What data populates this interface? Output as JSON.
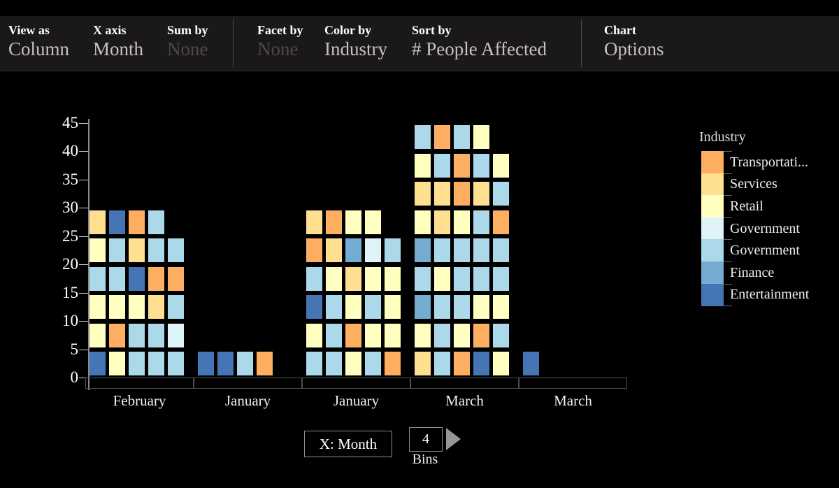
{
  "toolbar": {
    "groups": [
      {
        "label": "View as",
        "value": "Column",
        "muted": false
      },
      {
        "label": "X axis",
        "value": "Month",
        "muted": false
      },
      {
        "label": "Sum by",
        "value": "None",
        "muted": true
      },
      {
        "label": "Facet by",
        "value": "None",
        "muted": true
      },
      {
        "label": "Color by",
        "value": "Industry",
        "muted": false
      },
      {
        "label": "Sort by",
        "value": "# People Affected",
        "muted": false
      },
      {
        "label": "Chart",
        "value": "Options",
        "muted": false
      }
    ]
  },
  "legend": {
    "title": "Industry",
    "items": [
      {
        "label": "Transportati...",
        "color": "#fdae61"
      },
      {
        "label": "Services",
        "color": "#fee090"
      },
      {
        "label": "Retail",
        "color": "#ffffbf"
      },
      {
        "label": "Government",
        "color": "#e0f3f8"
      },
      {
        "label": "Government",
        "color": "#abd9e9"
      },
      {
        "label": "Finance",
        "color": "#74add1"
      },
      {
        "label": "Entertainment",
        "color": "#4575b4"
      }
    ]
  },
  "chart_data": {
    "type": "unit-column",
    "x_field": "Month",
    "color_field": "Industry",
    "sort_field": "# People Affected",
    "categories": [
      "February",
      "January",
      "January",
      "March",
      "March"
    ],
    "totals": [
      29,
      4,
      29,
      44,
      1
    ],
    "y_ticks": [
      0,
      5,
      10,
      15,
      20,
      25,
      30,
      35,
      40,
      45
    ],
    "ylim": [
      0,
      45
    ],
    "units_per_row": 5,
    "unit_value": 1,
    "legend_position": "right",
    "palette": {
      "T": "#fdae61",
      "S": "#fee090",
      "R": "#ffffbf",
      "G1": "#e0f3f8",
      "G2": "#abd9e9",
      "F": "#74add1",
      "E": "#4575b4"
    },
    "palette_names": {
      "T": "Transportation",
      "S": "Services",
      "R": "Retail",
      "G1": "Government",
      "G2": "Government",
      "F": "Finance",
      "E": "Entertainment"
    },
    "columns": [
      {
        "month": "February",
        "cells": [
          "E",
          "R",
          "G2",
          "G2",
          "G2",
          "R",
          "T",
          "G2",
          "G2",
          "G1",
          "R",
          "R",
          "R",
          "S",
          "G2",
          "G2",
          "G2",
          "E",
          "T",
          "T",
          "R",
          "G2",
          "S",
          "G2",
          "G2",
          "S",
          "E",
          "T",
          "G2"
        ]
      },
      {
        "month": "January",
        "cells": [
          "E",
          "E",
          "G2",
          "T"
        ]
      },
      {
        "month": "January",
        "cells": [
          "G2",
          "G2",
          "R",
          "G2",
          "T",
          "R",
          "G2",
          "T",
          "R",
          "R",
          "E",
          "G2",
          "R",
          "G2",
          "R",
          "G2",
          "R",
          "S",
          "R",
          "R",
          "T",
          "S",
          "F",
          "G1",
          "G2",
          "S",
          "T",
          "R",
          "R"
        ]
      },
      {
        "month": "March",
        "cells": [
          "S",
          "G2",
          "T",
          "E",
          "R",
          "R",
          "G2",
          "R",
          "T",
          "G2",
          "F",
          "G2",
          "G2",
          "R",
          "R",
          "G2",
          "R",
          "G2",
          "G2",
          "G2",
          "F",
          "G2",
          "G2",
          "G2",
          "G2",
          "R",
          "S",
          "R",
          "G2",
          "T",
          "S",
          "S",
          "T",
          "S",
          "G2",
          "R",
          "G2",
          "T",
          "G2",
          "R",
          "G2",
          "T",
          "G2",
          "R"
        ]
      },
      {
        "month": "March",
        "cells": [
          "E"
        ]
      }
    ]
  },
  "controls": {
    "x_button": "X: Month",
    "bins_value": "4",
    "bins_label": "Bins"
  }
}
